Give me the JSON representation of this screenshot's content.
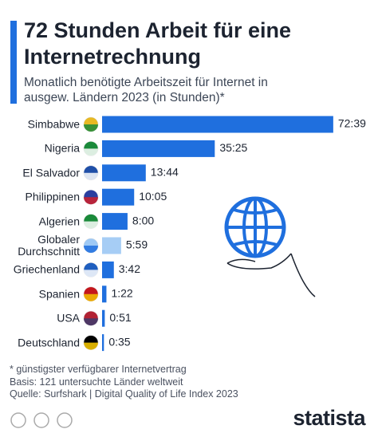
{
  "chart_data": {
    "type": "bar",
    "title": "72 Stunden Arbeit für eine Internetrechnung",
    "subtitle": "Monatlich benötigte Arbeitszeit für Internet in ausgew. Ländern 2023 (in Stunden)*",
    "categories": [
      "Simbabwe",
      "Nigeria",
      "El Salvador",
      "Philippinen",
      "Algerien",
      "Globaler Durchschnitt",
      "Griechenland",
      "Spanien",
      "USA",
      "Deutschland"
    ],
    "values": [
      72.65,
      35.4167,
      13.7333,
      10.0833,
      8,
      5.9833,
      3.7,
      1.3667,
      0.85,
      0.5833
    ],
    "value_labels": [
      "72:39",
      "35:25",
      "13:44",
      "10:05",
      "8:00",
      "5:59",
      "3:42",
      "1:22",
      "0:51",
      "0:35"
    ],
    "colors": [
      "#1f6fde",
      "#1f6fde",
      "#1f6fde",
      "#1f6fde",
      "#1f6fde",
      "#a6cdf5",
      "#1f6fde",
      "#1f6fde",
      "#1f6fde",
      "#1f6fde"
    ],
    "notes": [
      "* günstigster verfügbarer Internetvertrag",
      "Basis: 121 untersuchte Länder weltweit",
      "Quelle: Surfshark | Digital Quality of Life Index 2023"
    ],
    "brand": "statista"
  }
}
